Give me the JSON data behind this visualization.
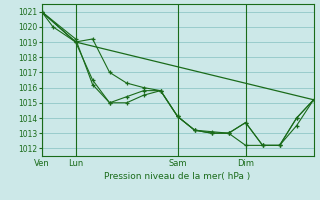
{
  "background_color": "#cce8e8",
  "grid_color": "#99cccc",
  "line_color": "#1a6b1a",
  "marker_color": "#1a6b1a",
  "xlabel_text": "Pression niveau de la mer( hPa )",
  "ylim": [
    1011.5,
    1021.5
  ],
  "yticks": [
    1012,
    1013,
    1014,
    1015,
    1016,
    1017,
    1018,
    1019,
    1020,
    1021
  ],
  "xlim": [
    0,
    288
  ],
  "xtick_positions": [
    0,
    36,
    144,
    216
  ],
  "xtick_labels": [
    "Ven",
    "Lun",
    "Sam",
    "Dim"
  ],
  "vline_positions": [
    0,
    36,
    144,
    216
  ],
  "series": [
    {
      "x": [
        0,
        12,
        36,
        54,
        72,
        90,
        108,
        126,
        144,
        162,
        180,
        198,
        216,
        234,
        252,
        270,
        288
      ],
      "y": [
        1021.0,
        1020.0,
        1019.0,
        1016.5,
        1015.0,
        1015.0,
        1015.5,
        1015.8,
        1014.1,
        1013.2,
        1013.1,
        1013.0,
        1013.7,
        1012.2,
        1012.2,
        1014.0,
        1015.2
      ]
    },
    {
      "x": [
        0,
        36,
        54,
        72,
        90,
        108,
        126,
        144,
        162,
        180,
        198,
        216,
        234,
        252,
        270,
        288
      ],
      "y": [
        1021.0,
        1019.2,
        1016.2,
        1015.0,
        1015.4,
        1015.8,
        1015.8,
        1014.1,
        1013.2,
        1013.0,
        1013.0,
        1012.2,
        1012.2,
        1012.2,
        1013.5,
        1015.2
      ]
    },
    {
      "x": [
        0,
        36,
        54,
        72,
        90,
        108,
        126,
        144,
        162,
        180,
        198,
        216,
        234,
        252,
        270,
        288
      ],
      "y": [
        1021.0,
        1019.0,
        1019.2,
        1017.0,
        1016.3,
        1016.0,
        1015.8,
        1014.1,
        1013.2,
        1013.0,
        1013.0,
        1013.7,
        1012.2,
        1012.2,
        1014.0,
        1015.2
      ]
    },
    {
      "x": [
        0,
        36,
        288
      ],
      "y": [
        1021.0,
        1019.0,
        1015.2
      ]
    }
  ]
}
